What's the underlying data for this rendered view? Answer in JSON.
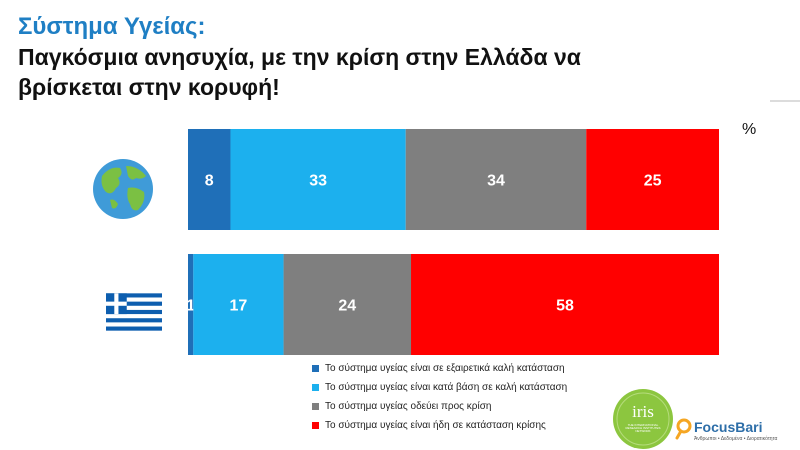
{
  "header": {
    "title": "Σύστημα Υγείας:",
    "subtitle_line1": "Παγκόσμια ανησυχία, με την κρίση στην Ελλάδα να",
    "subtitle_line2": "βρίσκεται στην κορυφή!"
  },
  "unit": "%",
  "chart_data": {
    "type": "bar",
    "stacked": true,
    "orientation": "horizontal",
    "categories": [
      "globe",
      "greece"
    ],
    "series": [
      {
        "name": "Το σύστημα υγείας είναι σε εξαιρετικά καλή κατάσταση",
        "color": "#1f6fb8",
        "values": [
          8,
          1
        ]
      },
      {
        "name": "Το σύστημα υγείας είναι κατά βάση σε καλή κατάσταση",
        "color": "#1cb0ee",
        "values": [
          33,
          17
        ]
      },
      {
        "name": "Το σύστημα υγείας οδεύει προς κρίση",
        "color": "#7f7f7f",
        "values": [
          34,
          24
        ]
      },
      {
        "name": "Το σύστημα υγείας είναι ήδη σε κατάσταση κρίσης",
        "color": "#ff0000",
        "values": [
          25,
          58
        ]
      }
    ],
    "xlim": [
      0,
      100
    ],
    "legend_position": "bottom"
  },
  "row_icons": [
    "globe-icon",
    "greek-flag-icon"
  ],
  "logos": {
    "iris_text": "iris",
    "iris_subtext": "THE INTERNATIONAL RESEARCH INSTITUTES NETWORK",
    "focus_name": "FocusBari",
    "focus_tagline": "Άνθρωποι • Δεδομένα • Διορατικότητα"
  }
}
